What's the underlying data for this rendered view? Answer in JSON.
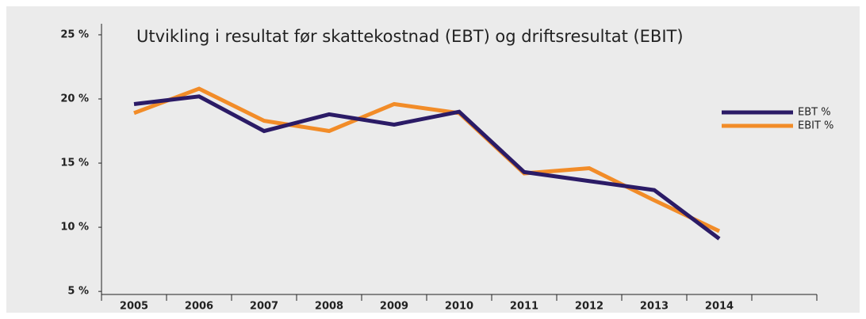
{
  "chart_data": {
    "type": "line",
    "title": "Utvikling i resultat før skattekostnad (EBT) og driftsresultat (EBIT)",
    "categories": [
      "2005",
      "2006",
      "2007",
      "2008",
      "2009",
      "2010",
      "2011",
      "2012",
      "2013",
      "2014"
    ],
    "series": [
      {
        "name": "EBT %",
        "color": "#2b1b66",
        "values": [
          19.6,
          20.2,
          17.5,
          18.8,
          18.0,
          19.0,
          14.3,
          13.6,
          12.9,
          9.1
        ]
      },
      {
        "name": "EBIT %",
        "color": "#f28c28",
        "values": [
          18.9,
          20.8,
          18.3,
          17.5,
          19.6,
          18.9,
          14.2,
          14.6,
          12.1,
          9.7
        ]
      }
    ],
    "ylim": [
      4.7,
      25.8
    ],
    "yticks": [
      {
        "value": 5,
        "label": "5 %"
      },
      {
        "value": 10,
        "label": "10 %"
      },
      {
        "value": 15,
        "label": "15 %"
      },
      {
        "value": 20,
        "label": "20 %"
      },
      {
        "value": 25,
        "label": "25 %"
      }
    ],
    "legend": "top-right"
  }
}
